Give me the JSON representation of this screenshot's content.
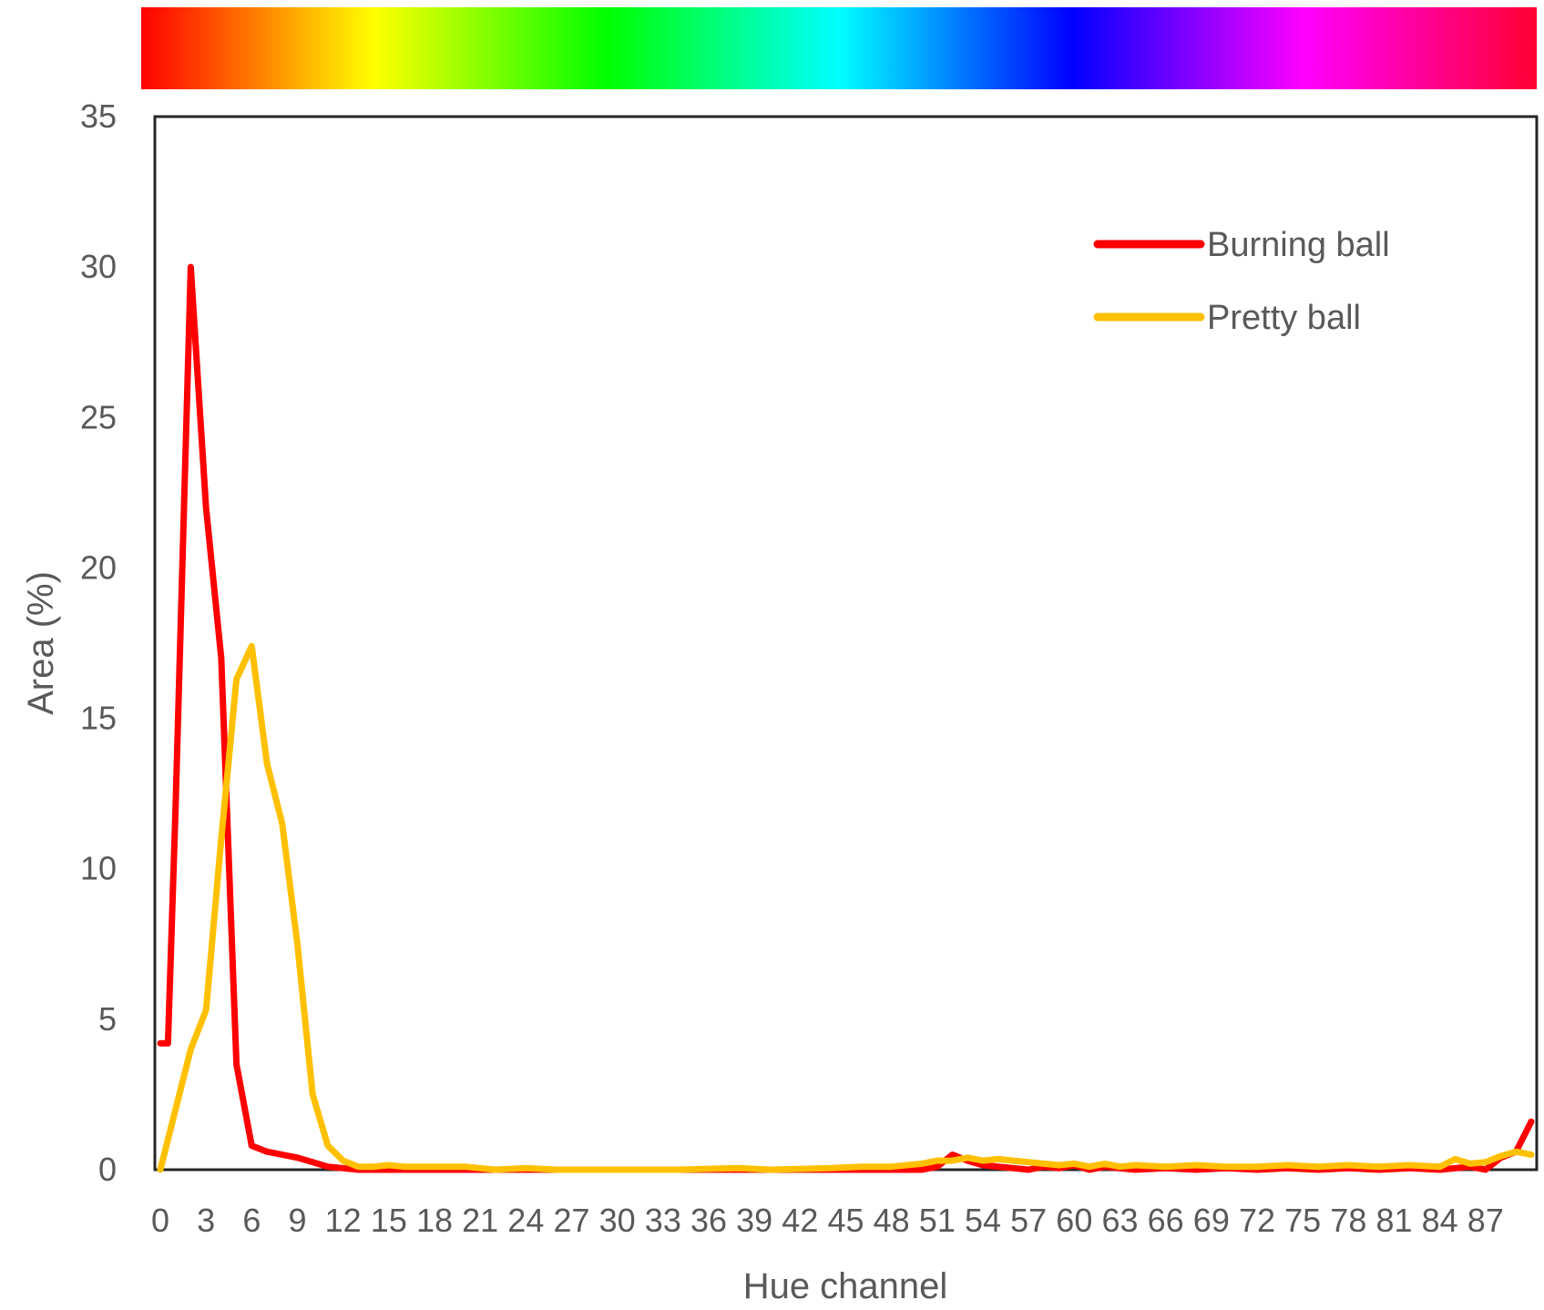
{
  "chart_data": {
    "type": "line",
    "xlabel": "Hue channel",
    "ylabel": "Area (%)",
    "xlim": [
      0,
      90
    ],
    "ylim": [
      0,
      35
    ],
    "yticks": [
      0,
      5,
      10,
      15,
      20,
      25,
      30,
      35
    ],
    "xtick_values": [
      0,
      3,
      6,
      9,
      12,
      15,
      18,
      21,
      24,
      27,
      30,
      33,
      36,
      39,
      42,
      45,
      48,
      51,
      54,
      57,
      60,
      63,
      66,
      69,
      72,
      75,
      78,
      81,
      84,
      87
    ],
    "xtick_labels": [
      "0",
      "3",
      "6",
      "9",
      "12",
      "15",
      "18",
      "21",
      "24",
      "27",
      "30",
      "33",
      "36",
      "39",
      "42",
      "45",
      "48",
      "51",
      "54",
      "57",
      "60",
      "63",
      "66",
      "69",
      "72",
      "75",
      "78",
      "81",
      "84",
      "87"
    ],
    "grid": false,
    "legend_position": "top-right",
    "hue_bar": true,
    "series": [
      {
        "name": "Burning ball",
        "color": "#ff0000",
        "points": [
          [
            0,
            4.2
          ],
          [
            0.5,
            4.2
          ],
          [
            1,
            12
          ],
          [
            2,
            30
          ],
          [
            3,
            22
          ],
          [
            4,
            17
          ],
          [
            5,
            3.5
          ],
          [
            6,
            0.8
          ],
          [
            7,
            0.6
          ],
          [
            8,
            0.5
          ],
          [
            9,
            0.4
          ],
          [
            10,
            0.25
          ],
          [
            11,
            0.1
          ],
          [
            12,
            0.05
          ],
          [
            13,
            0
          ],
          [
            20,
            0
          ],
          [
            30,
            0
          ],
          [
            40,
            0
          ],
          [
            50,
            0
          ],
          [
            51,
            0.1
          ],
          [
            52,
            0.5
          ],
          [
            53,
            0.3
          ],
          [
            54,
            0.15
          ],
          [
            55,
            0.1
          ],
          [
            56,
            0.05
          ],
          [
            57,
            0
          ],
          [
            58,
            0.1
          ],
          [
            59,
            0.05
          ],
          [
            60,
            0.15
          ],
          [
            61,
            0
          ],
          [
            62,
            0.1
          ],
          [
            64,
            0
          ],
          [
            66,
            0.05
          ],
          [
            68,
            0
          ],
          [
            70,
            0.05
          ],
          [
            72,
            0
          ],
          [
            74,
            0.05
          ],
          [
            76,
            0
          ],
          [
            78,
            0.05
          ],
          [
            80,
            0
          ],
          [
            82,
            0.05
          ],
          [
            84,
            0
          ],
          [
            86,
            0.1
          ],
          [
            87,
            0
          ],
          [
            88,
            0.4
          ],
          [
            89,
            0.6
          ],
          [
            90,
            1.6
          ]
        ]
      },
      {
        "name": "Pretty ball",
        "color": "#ffc000",
        "points": [
          [
            0,
            0
          ],
          [
            1,
            2
          ],
          [
            2,
            4
          ],
          [
            3,
            5.3
          ],
          [
            4,
            11
          ],
          [
            5,
            16.3
          ],
          [
            6,
            17.4
          ],
          [
            7,
            13.5
          ],
          [
            8,
            11.5
          ],
          [
            9,
            7.5
          ],
          [
            10,
            2.5
          ],
          [
            11,
            0.8
          ],
          [
            12,
            0.3
          ],
          [
            13,
            0.1
          ],
          [
            14,
            0.1
          ],
          [
            15,
            0.15
          ],
          [
            16,
            0.1
          ],
          [
            18,
            0.1
          ],
          [
            20,
            0.1
          ],
          [
            22,
            0
          ],
          [
            24,
            0.05
          ],
          [
            26,
            0
          ],
          [
            30,
            0
          ],
          [
            34,
            0
          ],
          [
            38,
            0.05
          ],
          [
            40,
            0
          ],
          [
            44,
            0.05
          ],
          [
            46,
            0.1
          ],
          [
            48,
            0.1
          ],
          [
            50,
            0.2
          ],
          [
            51,
            0.3
          ],
          [
            52,
            0.3
          ],
          [
            53,
            0.4
          ],
          [
            54,
            0.3
          ],
          [
            55,
            0.35
          ],
          [
            56,
            0.3
          ],
          [
            57,
            0.25
          ],
          [
            58,
            0.2
          ],
          [
            59,
            0.15
          ],
          [
            60,
            0.2
          ],
          [
            61,
            0.1
          ],
          [
            62,
            0.2
          ],
          [
            63,
            0.1
          ],
          [
            64,
            0.15
          ],
          [
            66,
            0.1
          ],
          [
            68,
            0.15
          ],
          [
            70,
            0.1
          ],
          [
            72,
            0.1
          ],
          [
            74,
            0.15
          ],
          [
            76,
            0.1
          ],
          [
            78,
            0.15
          ],
          [
            80,
            0.1
          ],
          [
            82,
            0.15
          ],
          [
            84,
            0.1
          ],
          [
            85,
            0.35
          ],
          [
            86,
            0.2
          ],
          [
            87,
            0.25
          ],
          [
            88,
            0.45
          ],
          [
            89,
            0.6
          ],
          [
            90,
            0.5
          ]
        ]
      }
    ]
  }
}
